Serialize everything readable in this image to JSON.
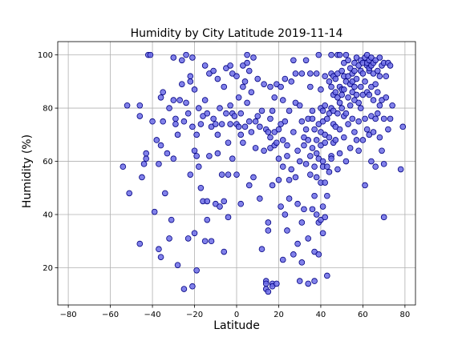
{
  "chart_data": {
    "type": "scatter",
    "title": "Humidity by City Latitude  2019-11-14",
    "xlabel": "Latitude",
    "ylabel": "Humidity (%)",
    "xlim": [
      -85,
      85
    ],
    "ylim": [
      6,
      105
    ],
    "xticks": [
      -80,
      -60,
      -40,
      -20,
      0,
      20,
      40,
      60,
      80
    ],
    "yticks": [
      20,
      40,
      60,
      80,
      100
    ],
    "xtick_labels": [
      "−80",
      "−60",
      "−40",
      "−20",
      "0",
      "20",
      "40",
      "60",
      "80"
    ],
    "ytick_labels": [
      "20",
      "40",
      "60",
      "80",
      "100"
    ],
    "grid": true,
    "legend": "none",
    "colors": {
      "marker_fill": "#6b6be6",
      "marker_edge": "#000080"
    },
    "points": [
      [
        -54,
        58
      ],
      [
        -52,
        81
      ],
      [
        -51,
        48
      ],
      [
        -46,
        81
      ],
      [
        -46,
        77
      ],
      [
        -46,
        29
      ],
      [
        -45,
        54
      ],
      [
        -44,
        59
      ],
      [
        -43,
        61
      ],
      [
        -43,
        63
      ],
      [
        -42,
        100
      ],
      [
        -41,
        100
      ],
      [
        -40,
        75
      ],
      [
        -39,
        41
      ],
      [
        -38,
        68
      ],
      [
        -37,
        59
      ],
      [
        -37,
        27
      ],
      [
        -36,
        66
      ],
      [
        -36,
        24
      ],
      [
        -36,
        84
      ],
      [
        -35,
        86
      ],
      [
        -35,
        75
      ],
      [
        -34,
        48
      ],
      [
        -33,
        63
      ],
      [
        -32,
        31
      ],
      [
        -32,
        80
      ],
      [
        -31,
        38
      ],
      [
        -30,
        99
      ],
      [
        -30,
        83
      ],
      [
        -30,
        61
      ],
      [
        -29,
        76
      ],
      [
        -29,
        74
      ],
      [
        -28,
        21
      ],
      [
        -28,
        70
      ],
      [
        -27,
        83
      ],
      [
        -26,
        98
      ],
      [
        -26,
        89
      ],
      [
        -25,
        12
      ],
      [
        -25,
        75
      ],
      [
        -24,
        100
      ],
      [
        -24,
        82
      ],
      [
        -23,
        31
      ],
      [
        -23,
        78
      ],
      [
        -22,
        92
      ],
      [
        -22,
        90
      ],
      [
        -22,
        55
      ],
      [
        -21,
        99
      ],
      [
        -21,
        13
      ],
      [
        -21,
        73
      ],
      [
        -20,
        87
      ],
      [
        -20,
        33
      ],
      [
        -20,
        64
      ],
      [
        -19,
        70
      ],
      [
        -19,
        19
      ],
      [
        -19,
        62
      ],
      [
        -18,
        80
      ],
      [
        -18,
        58
      ],
      [
        -17,
        50
      ],
      [
        -17,
        74
      ],
      [
        -16,
        45
      ],
      [
        -16,
        77
      ],
      [
        -15,
        83
      ],
      [
        -15,
        30
      ],
      [
        -15,
        96
      ],
      [
        -14,
        45
      ],
      [
        -14,
        38
      ],
      [
        -14,
        78
      ],
      [
        -13,
        62
      ],
      [
        -13,
        93
      ],
      [
        -12,
        30
      ],
      [
        -12,
        73
      ],
      [
        -11,
        76
      ],
      [
        -11,
        94
      ],
      [
        -10,
        74
      ],
      [
        -10,
        44
      ],
      [
        -9,
        70
      ],
      [
        -9,
        63
      ],
      [
        -9,
        91
      ],
      [
        -8,
        80
      ],
      [
        -8,
        43
      ],
      [
        -7,
        55
      ],
      [
        -7,
        74
      ],
      [
        -6,
        45
      ],
      [
        -6,
        26
      ],
      [
        -6,
        88
      ],
      [
        -5,
        95
      ],
      [
        -5,
        78
      ],
      [
        -4,
        67
      ],
      [
        -4,
        39
      ],
      [
        -4,
        55
      ],
      [
        -3,
        96
      ],
      [
        -3,
        81
      ],
      [
        -3,
        74
      ],
      [
        -2,
        78
      ],
      [
        -2,
        61
      ],
      [
        -2,
        93
      ],
      [
        -1,
        77
      ],
      [
        0,
        92
      ],
      [
        0,
        55
      ],
      [
        0,
        74
      ],
      [
        1,
        73
      ],
      [
        1,
        84
      ],
      [
        2,
        70
      ],
      [
        2,
        44
      ],
      [
        2,
        78
      ],
      [
        3,
        96
      ],
      [
        3,
        67
      ],
      [
        3,
        88
      ],
      [
        4,
        90
      ],
      [
        4,
        73
      ],
      [
        5,
        97
      ],
      [
        5,
        82
      ],
      [
        5,
        100
      ],
      [
        6,
        94
      ],
      [
        6,
        75
      ],
      [
        6,
        51
      ],
      [
        7,
        86
      ],
      [
        7,
        71
      ],
      [
        8,
        54
      ],
      [
        8,
        99
      ],
      [
        9,
        75
      ],
      [
        9,
        65
      ],
      [
        10,
        77
      ],
      [
        10,
        91
      ],
      [
        11,
        46
      ],
      [
        11,
        73
      ],
      [
        12,
        79
      ],
      [
        12,
        27
      ],
      [
        13,
        89
      ],
      [
        13,
        64
      ],
      [
        14,
        72
      ],
      [
        14,
        15
      ],
      [
        14,
        14
      ],
      [
        14,
        12
      ],
      [
        15,
        71
      ],
      [
        15,
        37
      ],
      [
        15,
        11
      ],
      [
        15,
        34
      ],
      [
        16,
        88
      ],
      [
        16,
        69
      ],
      [
        16,
        76
      ],
      [
        16,
        65
      ],
      [
        17,
        14
      ],
      [
        17,
        51
      ],
      [
        17,
        79
      ],
      [
        17,
        13
      ],
      [
        18,
        66
      ],
      [
        18,
        71
      ],
      [
        18,
        84
      ],
      [
        19,
        14
      ],
      [
        19,
        67
      ],
      [
        19,
        89
      ],
      [
        20,
        72
      ],
      [
        20,
        53
      ],
      [
        20,
        61
      ],
      [
        21,
        43
      ],
      [
        21,
        74
      ],
      [
        21,
        88
      ],
      [
        22,
        68
      ],
      [
        22,
        23
      ],
      [
        22,
        83
      ],
      [
        22,
        58
      ],
      [
        23,
        40
      ],
      [
        23,
        75
      ],
      [
        23,
        91
      ],
      [
        24,
        66
      ],
      [
        24,
        34
      ],
      [
        24,
        62
      ],
      [
        25,
        53
      ],
      [
        25,
        79
      ],
      [
        25,
        46
      ],
      [
        26,
        90
      ],
      [
        26,
        57
      ],
      [
        27,
        25
      ],
      [
        27,
        98
      ],
      [
        27,
        71
      ],
      [
        28,
        82
      ],
      [
        28,
        54
      ],
      [
        28,
        93
      ],
      [
        29,
        29
      ],
      [
        29,
        64
      ],
      [
        29,
        44
      ],
      [
        30,
        81
      ],
      [
        30,
        60
      ],
      [
        30,
        15
      ],
      [
        31,
        22
      ],
      [
        31,
        93
      ],
      [
        31,
        37
      ],
      [
        31,
        75
      ],
      [
        32,
        66
      ],
      [
        32,
        42
      ],
      [
        32,
        69
      ],
      [
        33,
        59
      ],
      [
        33,
        98
      ],
      [
        33,
        72
      ],
      [
        34,
        76
      ],
      [
        34,
        14
      ],
      [
        34,
        31
      ],
      [
        34,
        68
      ],
      [
        35,
        62
      ],
      [
        35,
        88
      ],
      [
        35,
        55
      ],
      [
        35,
        93
      ],
      [
        36,
        65
      ],
      [
        36,
        42
      ],
      [
        36,
        76
      ],
      [
        36,
        79
      ],
      [
        37,
        58
      ],
      [
        37,
        47
      ],
      [
        37,
        15
      ],
      [
        37,
        26
      ],
      [
        37,
        72
      ],
      [
        38,
        93
      ],
      [
        38,
        63
      ],
      [
        38,
        68
      ],
      [
        38,
        40
      ],
      [
        38,
        54
      ],
      [
        39,
        100
      ],
      [
        39,
        61
      ],
      [
        39,
        74
      ],
      [
        39,
        25
      ],
      [
        39,
        37
      ],
      [
        40,
        87
      ],
      [
        40,
        66
      ],
      [
        40,
        38
      ],
      [
        40,
        52
      ],
      [
        40,
        71
      ],
      [
        40,
        80
      ],
      [
        41,
        79
      ],
      [
        41,
        60
      ],
      [
        41,
        33
      ],
      [
        41,
        43
      ],
      [
        41,
        58
      ],
      [
        41,
        75
      ],
      [
        42,
        92
      ],
      [
        42,
        70
      ],
      [
        42,
        39
      ],
      [
        42,
        52
      ],
      [
        42,
        67
      ],
      [
        42,
        81
      ],
      [
        43,
        58
      ],
      [
        43,
        47
      ],
      [
        43,
        17
      ],
      [
        43,
        76
      ],
      [
        44,
        90
      ],
      [
        44,
        69
      ],
      [
        44,
        56
      ],
      [
        44,
        78
      ],
      [
        45,
        100
      ],
      [
        45,
        93
      ],
      [
        45,
        80
      ],
      [
        45,
        62
      ],
      [
        45,
        88
      ],
      [
        45,
        61
      ],
      [
        46,
        92
      ],
      [
        46,
        74
      ],
      [
        46,
        79
      ],
      [
        46,
        85
      ],
      [
        46,
        67
      ],
      [
        47,
        91
      ],
      [
        47,
        73
      ],
      [
        47,
        86
      ],
      [
        47,
        68
      ],
      [
        48,
        100
      ],
      [
        48,
        84
      ],
      [
        48,
        57
      ],
      [
        48,
        93
      ],
      [
        48,
        78
      ],
      [
        49,
        100
      ],
      [
        49,
        82
      ],
      [
        49,
        88
      ],
      [
        49,
        72
      ],
      [
        49,
        63
      ],
      [
        50,
        94
      ],
      [
        50,
        80
      ],
      [
        50,
        85
      ],
      [
        50,
        87
      ],
      [
        51,
        97
      ],
      [
        51,
        87
      ],
      [
        51,
        77
      ],
      [
        51,
        92
      ],
      [
        51,
        69
      ],
      [
        52,
        100
      ],
      [
        52,
        78
      ],
      [
        52,
        60
      ],
      [
        52,
        90
      ],
      [
        53,
        98
      ],
      [
        53,
        92
      ],
      [
        53,
        84
      ],
      [
        53,
        74
      ],
      [
        54,
        89
      ],
      [
        54,
        95
      ],
      [
        54,
        65
      ],
      [
        54,
        81
      ],
      [
        55,
        93
      ],
      [
        55,
        90
      ],
      [
        55,
        86
      ],
      [
        55,
        76
      ],
      [
        56,
        97
      ],
      [
        56,
        94
      ],
      [
        56,
        88
      ],
      [
        56,
        71
      ],
      [
        56,
        83
      ],
      [
        57,
        99
      ],
      [
        57,
        85
      ],
      [
        57,
        68
      ],
      [
        57,
        91
      ],
      [
        58,
        96
      ],
      [
        58,
        75
      ],
      [
        58,
        82
      ],
      [
        58,
        64
      ],
      [
        59,
        98
      ],
      [
        59,
        88
      ],
      [
        59,
        94
      ],
      [
        59,
        80
      ],
      [
        60,
        93
      ],
      [
        60,
        97
      ],
      [
        60,
        85
      ],
      [
        60,
        68
      ],
      [
        61,
        99
      ],
      [
        61,
        90
      ],
      [
        61,
        76
      ],
      [
        61,
        51
      ],
      [
        62,
        96
      ],
      [
        62,
        100
      ],
      [
        62,
        86
      ],
      [
        62,
        72
      ],
      [
        62,
        97
      ],
      [
        63,
        94
      ],
      [
        63,
        98
      ],
      [
        63,
        85
      ],
      [
        63,
        70
      ],
      [
        63,
        95
      ],
      [
        64,
        96
      ],
      [
        64,
        88
      ],
      [
        64,
        77
      ],
      [
        64,
        60
      ],
      [
        64,
        99
      ],
      [
        65,
        93
      ],
      [
        65,
        83
      ],
      [
        65,
        71
      ],
      [
        65,
        97
      ],
      [
        66,
        98
      ],
      [
        66,
        89
      ],
      [
        66,
        76
      ],
      [
        66,
        58
      ],
      [
        67,
        94
      ],
      [
        67,
        78
      ],
      [
        67,
        86
      ],
      [
        68,
        99
      ],
      [
        68,
        92
      ],
      [
        68,
        81
      ],
      [
        68,
        69
      ],
      [
        69,
        96
      ],
      [
        69,
        64
      ],
      [
        69,
        83
      ],
      [
        70,
        97
      ],
      [
        70,
        39
      ],
      [
        70,
        59
      ],
      [
        70,
        76
      ],
      [
        71,
        84
      ],
      [
        71,
        92
      ],
      [
        72,
        97
      ],
      [
        72,
        72
      ],
      [
        73,
        96
      ],
      [
        73,
        76
      ],
      [
        74,
        81
      ],
      [
        78,
        57
      ],
      [
        79,
        73
      ]
    ]
  }
}
